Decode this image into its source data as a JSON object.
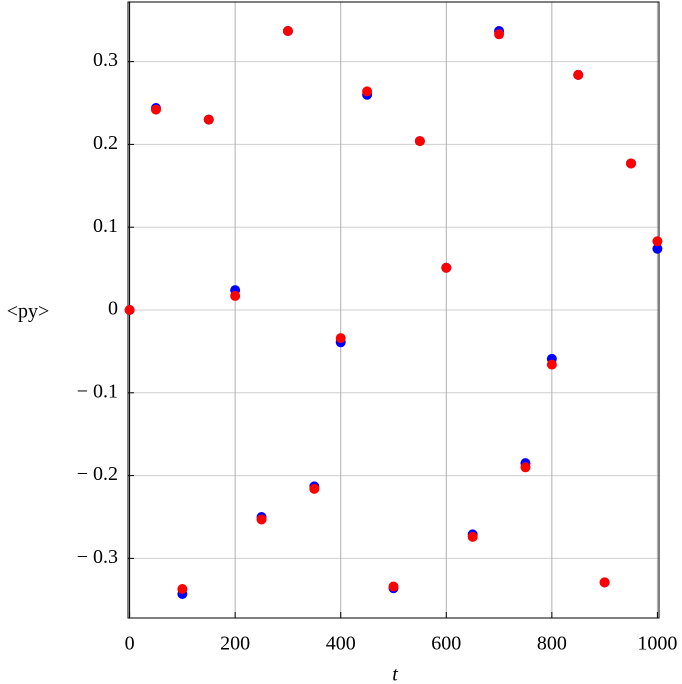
{
  "chart_data": {
    "type": "scatter",
    "x_label": "t",
    "y_label": "<py>",
    "x": [
      0,
      50,
      100,
      150,
      200,
      250,
      300,
      350,
      400,
      450,
      500,
      550,
      600,
      650,
      700,
      750,
      800,
      850,
      900,
      950,
      1000
    ],
    "series": [
      {
        "color": "#0000ff",
        "values": [
          0,
          0.244,
          -0.343,
          0.23,
          0.024,
          -0.25,
          0.337,
          -0.213,
          -0.039,
          0.26,
          -0.336,
          0.204,
          0.051,
          -0.271,
          0.337,
          -0.185,
          -0.059,
          0.284,
          -0.329,
          0.177,
          0.074
        ]
      },
      {
        "color": "#ff0000",
        "values": [
          0,
          0.242,
          -0.337,
          0.23,
          0.017,
          -0.253,
          0.337,
          -0.216,
          -0.034,
          0.264,
          -0.334,
          0.204,
          0.051,
          -0.274,
          0.333,
          -0.19,
          -0.066,
          0.284,
          -0.329,
          0.177,
          0.083
        ]
      }
    ],
    "xlim": [
      -3,
      1003
    ],
    "ylim": [
      -0.372,
      0.372
    ],
    "xticks": [
      0,
      200,
      400,
      600,
      800,
      1000
    ],
    "yticks": [
      {
        "value": -0.3,
        "label": "− 0.3"
      },
      {
        "value": -0.2,
        "label": "− 0.2"
      },
      {
        "value": -0.1,
        "label": "− 0.1"
      },
      0,
      0.1,
      0.2,
      0.3
    ],
    "grid": true
  }
}
